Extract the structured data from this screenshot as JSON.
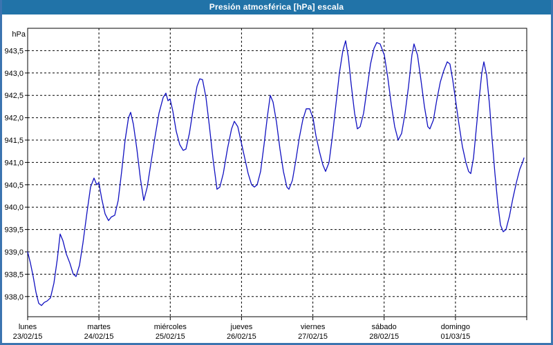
{
  "header": {
    "title": "Presión atmosférica [hPa] escala"
  },
  "colors": {
    "header_bg": "#2173a8",
    "frame": "#3b74b0",
    "line": "#0f0fc0",
    "grid": "#000000",
    "text": "#000000",
    "title_text": "#ffffff",
    "plot_bg": "#ffffff"
  },
  "chart_data": {
    "type": "line",
    "title": "Presión atmosférica [hPa] escala",
    "unit_label": "hPa",
    "grid": "dashed",
    "legend": "none",
    "y_axis": {
      "range": [
        937.55,
        944.0
      ],
      "tick_step": 0.5,
      "ticks": [
        {
          "value": 943.5,
          "label": "943,5"
        },
        {
          "value": 943.0,
          "label": "943,0"
        },
        {
          "value": 942.5,
          "label": "942,5"
        },
        {
          "value": 942.0,
          "label": "942,0"
        },
        {
          "value": 941.5,
          "label": "941,5"
        },
        {
          "value": 941.0,
          "label": "941,0"
        },
        {
          "value": 940.5,
          "label": "940,5"
        },
        {
          "value": 940.0,
          "label": "940,0"
        },
        {
          "value": 939.5,
          "label": "939,5"
        },
        {
          "value": 939.0,
          "label": "939,0"
        },
        {
          "value": 938.5,
          "label": "938,5"
        },
        {
          "value": 938.0,
          "label": "938,0"
        }
      ]
    },
    "x_axis": {
      "span_days": 7,
      "days": [
        {
          "name": "lunes",
          "date": "23/02/15"
        },
        {
          "name": "martes",
          "date": "24/02/15"
        },
        {
          "name": "miércoles",
          "date": "25/02/15"
        },
        {
          "name": "jueves",
          "date": "26/02/15"
        },
        {
          "name": "viernes",
          "date": "27/02/15"
        },
        {
          "name": "sábado",
          "date": "28/02/15"
        },
        {
          "name": "domingo",
          "date": "01/03/15"
        }
      ]
    },
    "series": [
      {
        "name": "Presión atmosférica [hPa]",
        "points": [
          [
            0.0,
            939.0
          ],
          [
            0.039,
            938.75
          ],
          [
            0.078,
            938.45
          ],
          [
            0.116,
            938.1
          ],
          [
            0.155,
            937.85
          ],
          [
            0.194,
            937.8
          ],
          [
            0.233,
            937.87
          ],
          [
            0.271,
            937.9
          ],
          [
            0.32,
            937.97
          ],
          [
            0.368,
            938.3
          ],
          [
            0.417,
            938.85
          ],
          [
            0.456,
            939.4
          ],
          [
            0.494,
            939.25
          ],
          [
            0.543,
            938.95
          ],
          [
            0.591,
            938.75
          ],
          [
            0.64,
            938.5
          ],
          [
            0.679,
            938.45
          ],
          [
            0.727,
            938.7
          ],
          [
            0.776,
            939.2
          ],
          [
            0.834,
            939.9
          ],
          [
            0.882,
            940.45
          ],
          [
            0.931,
            940.65
          ],
          [
            0.97,
            940.5
          ],
          [
            0.999,
            940.55
          ],
          [
            1.037,
            940.2
          ],
          [
            1.086,
            939.85
          ],
          [
            1.134,
            939.7
          ],
          [
            1.173,
            939.78
          ],
          [
            1.222,
            939.82
          ],
          [
            1.27,
            940.15
          ],
          [
            1.319,
            940.8
          ],
          [
            1.367,
            941.5
          ],
          [
            1.415,
            942.0
          ],
          [
            1.445,
            942.12
          ],
          [
            1.483,
            941.85
          ],
          [
            1.532,
            941.3
          ],
          [
            1.58,
            940.65
          ],
          [
            1.629,
            940.15
          ],
          [
            1.677,
            940.45
          ],
          [
            1.726,
            940.95
          ],
          [
            1.784,
            941.55
          ],
          [
            1.842,
            942.1
          ],
          [
            1.9,
            942.45
          ],
          [
            1.939,
            942.55
          ],
          [
            1.968,
            942.38
          ],
          [
            1.997,
            942.42
          ],
          [
            2.036,
            942.15
          ],
          [
            2.084,
            941.7
          ],
          [
            2.133,
            941.4
          ],
          [
            2.181,
            941.27
          ],
          [
            2.22,
            941.3
          ],
          [
            2.269,
            941.65
          ],
          [
            2.327,
            942.25
          ],
          [
            2.375,
            942.7
          ],
          [
            2.414,
            942.87
          ],
          [
            2.453,
            942.85
          ],
          [
            2.501,
            942.45
          ],
          [
            2.55,
            941.8
          ],
          [
            2.598,
            941.1
          ],
          [
            2.656,
            940.4
          ],
          [
            2.695,
            940.45
          ],
          [
            2.744,
            940.75
          ],
          [
            2.802,
            941.3
          ],
          [
            2.86,
            941.75
          ],
          [
            2.899,
            941.92
          ],
          [
            2.947,
            941.8
          ],
          [
            2.996,
            941.45
          ],
          [
            3.044,
            941.1
          ],
          [
            3.093,
            940.75
          ],
          [
            3.141,
            940.5
          ],
          [
            3.18,
            940.45
          ],
          [
            3.219,
            940.5
          ],
          [
            3.267,
            940.8
          ],
          [
            3.316,
            941.4
          ],
          [
            3.364,
            942.05
          ],
          [
            3.403,
            942.5
          ],
          [
            3.442,
            942.35
          ],
          [
            3.49,
            941.9
          ],
          [
            3.539,
            941.3
          ],
          [
            3.587,
            940.8
          ],
          [
            3.636,
            940.45
          ],
          [
            3.665,
            940.4
          ],
          [
            3.713,
            940.6
          ],
          [
            3.762,
            941.05
          ],
          [
            3.81,
            941.55
          ],
          [
            3.859,
            941.95
          ],
          [
            3.907,
            942.2
          ],
          [
            3.956,
            942.2
          ],
          [
            4.004,
            941.98
          ],
          [
            4.043,
            941.6
          ],
          [
            4.091,
            941.25
          ],
          [
            4.14,
            940.95
          ],
          [
            4.179,
            940.8
          ],
          [
            4.227,
            941.0
          ],
          [
            4.276,
            941.6
          ],
          [
            4.324,
            942.3
          ],
          [
            4.373,
            943.0
          ],
          [
            4.421,
            943.5
          ],
          [
            4.46,
            943.72
          ],
          [
            4.499,
            943.35
          ],
          [
            4.537,
            942.75
          ],
          [
            4.586,
            942.1
          ],
          [
            4.625,
            941.75
          ],
          [
            4.663,
            941.8
          ],
          [
            4.712,
            942.1
          ],
          [
            4.76,
            942.65
          ],
          [
            4.809,
            943.2
          ],
          [
            4.857,
            943.55
          ],
          [
            4.896,
            943.68
          ],
          [
            4.944,
            943.65
          ],
          [
            5.003,
            943.4
          ],
          [
            5.051,
            942.9
          ],
          [
            5.1,
            942.3
          ],
          [
            5.148,
            941.8
          ],
          [
            5.197,
            941.5
          ],
          [
            5.245,
            941.65
          ],
          [
            5.294,
            942.1
          ],
          [
            5.342,
            942.7
          ],
          [
            5.39,
            943.4
          ],
          [
            5.419,
            943.65
          ],
          [
            5.468,
            943.4
          ],
          [
            5.516,
            942.85
          ],
          [
            5.565,
            942.25
          ],
          [
            5.613,
            941.8
          ],
          [
            5.642,
            941.75
          ],
          [
            5.691,
            941.95
          ],
          [
            5.739,
            942.4
          ],
          [
            5.788,
            942.8
          ],
          [
            5.836,
            943.05
          ],
          [
            5.885,
            943.25
          ],
          [
            5.923,
            943.2
          ],
          [
            5.962,
            942.85
          ],
          [
            6.001,
            942.4
          ],
          [
            6.05,
            941.85
          ],
          [
            6.098,
            941.35
          ],
          [
            6.147,
            941.0
          ],
          [
            6.185,
            940.8
          ],
          [
            6.215,
            940.75
          ],
          [
            6.253,
            941.1
          ],
          [
            6.292,
            941.75
          ],
          [
            6.331,
            942.4
          ],
          [
            6.37,
            943.0
          ],
          [
            6.399,
            943.25
          ],
          [
            6.438,
            942.95
          ],
          [
            6.477,
            942.3
          ],
          [
            6.515,
            941.5
          ],
          [
            6.554,
            940.75
          ],
          [
            6.593,
            940.1
          ],
          [
            6.632,
            939.6
          ],
          [
            6.67,
            939.45
          ],
          [
            6.709,
            939.5
          ],
          [
            6.758,
            939.8
          ],
          [
            6.806,
            940.2
          ],
          [
            6.855,
            940.55
          ],
          [
            6.903,
            940.85
          ],
          [
            6.942,
            941.0
          ],
          [
            6.961,
            941.1
          ]
        ]
      }
    ]
  }
}
